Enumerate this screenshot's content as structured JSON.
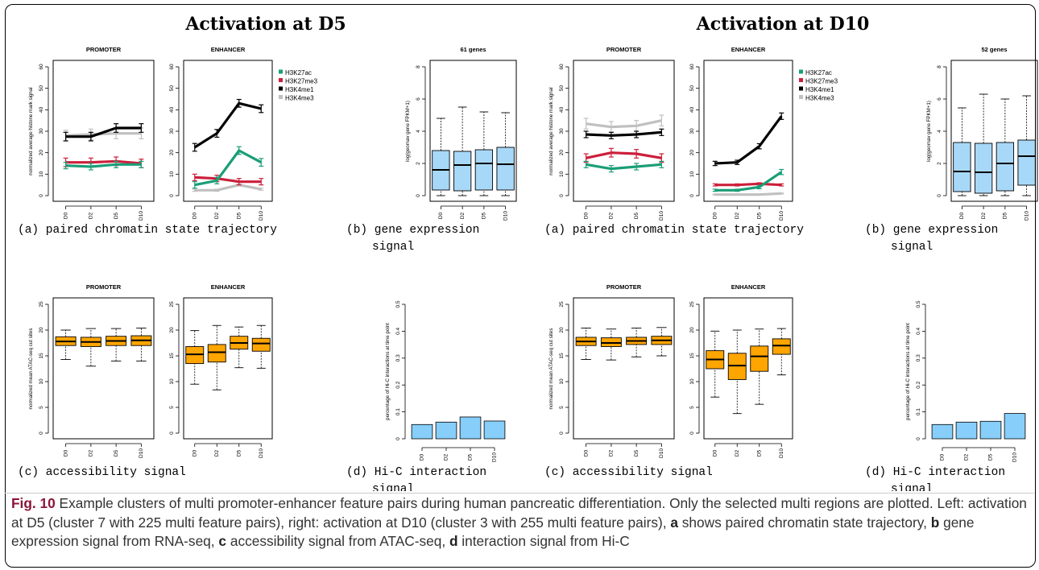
{
  "panels": [
    {
      "heading": "Activation at D5"
    },
    {
      "heading": "Activation at D10"
    }
  ],
  "labels": {
    "a": "(a) paired chromatin state trajectory",
    "b1": "(b) gene expression",
    "b2": "signal",
    "c": "(c) accessibility signal",
    "d1": "(d) Hi-C interaction",
    "d2": "signal"
  },
  "caption": {
    "fig_label": "Fig. 10",
    "sentence1": " Example clusters of multi promoter-enhancer feature pairs during human pancreatic differentiation. Only the selected multi regions are plotted. Left: activation at D5 (cluster 7 with 225 multi feature pairs), right: activation at D10 (cluster 3 with 255 multi feature pairs), ",
    "a_key": "a",
    "a_text": " shows paired chromatin state trajectory, ",
    "b_key": "b",
    "b_text": " gene expression signal from RNA-seq, ",
    "c_key": "c",
    "c_text": " accessibility signal from ATAC-seq, ",
    "d_key": "d",
    "d_text": " interaction signal from Hi-C"
  },
  "colors": {
    "H3K27ac": "#1a9e77",
    "H3K27me3": "#cc1f3b",
    "H3K4me1": "#000000",
    "H3K4me3": "#c0c0c0",
    "box_fill_expression": "#a8d8f8",
    "box_fill_accessibility": "#ffa500",
    "bar_fill": "#87cefa",
    "caption_label": "#8a1538"
  },
  "chart_data": [
    {
      "id": "d5-histone-promoter",
      "type": "line",
      "title": "PROMOTER",
      "ylabel": "normalized average histone mark signal",
      "ylim": [
        0,
        60
      ],
      "yticks": [
        0,
        10,
        20,
        30,
        40,
        50,
        60
      ],
      "categories": [
        "D0",
        "D2",
        "D5",
        "D10"
      ],
      "series": [
        {
          "name": "H3K27ac",
          "values": [
            14,
            13.5,
            14.5,
            14.5
          ],
          "err": [
            1.5,
            1.5,
            1.5,
            1.5
          ]
        },
        {
          "name": "H3K27me3",
          "values": [
            15.5,
            15.5,
            16,
            15
          ],
          "err": [
            2,
            2,
            2,
            2
          ]
        },
        {
          "name": "H3K4me1",
          "values": [
            27.5,
            27.5,
            31.5,
            31.5
          ],
          "err": [
            2,
            2,
            2,
            2
          ]
        },
        {
          "name": "H3K4me3",
          "values": [
            28,
            28.5,
            29,
            29
          ],
          "err": [
            2.5,
            2.5,
            2.5,
            2.5
          ]
        }
      ]
    },
    {
      "id": "d5-histone-enhancer",
      "type": "line",
      "title": "ENHANCER",
      "ylabel": "",
      "ylim": [
        0,
        60
      ],
      "yticks": [
        0,
        10,
        20,
        30,
        40,
        50,
        60
      ],
      "categories": [
        "D0",
        "D2",
        "D5",
        "D10"
      ],
      "legend": "top-right",
      "series": [
        {
          "name": "H3K27ac",
          "values": [
            5,
            7,
            21,
            15.5
          ],
          "err": [
            1.5,
            1.5,
            1.8,
            1.8
          ]
        },
        {
          "name": "H3K27me3",
          "values": [
            8.5,
            8,
            6.5,
            6.5
          ],
          "err": [
            1.5,
            1.5,
            1.5,
            1.5
          ]
        },
        {
          "name": "H3K4me1",
          "values": [
            22.5,
            29,
            43,
            40.5
          ],
          "err": [
            1.8,
            1.8,
            1.8,
            1.8
          ]
        },
        {
          "name": "H3K4me3",
          "values": [
            2.5,
            2.5,
            5,
            3
          ],
          "err": [
            0.5,
            0.5,
            0.5,
            0.5
          ]
        }
      ]
    },
    {
      "id": "d5-expression",
      "type": "box",
      "title": "61 genes",
      "ylabel": "log(geomav gene FPKM+1)",
      "ylim": [
        0,
        8
      ],
      "yticks": [
        0,
        2,
        4,
        6,
        8
      ],
      "categories": [
        "D0",
        "D2",
        "D5",
        "D10"
      ],
      "boxes": [
        {
          "min": 0,
          "q1": 0.35,
          "median": 1.6,
          "q3": 2.8,
          "max": 4.8
        },
        {
          "min": 0,
          "q1": 0.3,
          "median": 1.9,
          "q3": 2.75,
          "max": 5.5
        },
        {
          "min": 0,
          "q1": 0.35,
          "median": 2,
          "q3": 2.85,
          "max": 5.2
        },
        {
          "min": 0,
          "q1": 0.35,
          "median": 1.95,
          "q3": 3,
          "max": 5.15
        }
      ]
    },
    {
      "id": "d10-histone-promoter",
      "type": "line",
      "title": "PROMOTER",
      "ylabel": "normalized average histone mark signal",
      "ylim": [
        0,
        60
      ],
      "yticks": [
        0,
        10,
        20,
        30,
        40,
        50,
        60
      ],
      "categories": [
        "D0",
        "D2",
        "D5",
        "D10"
      ],
      "series": [
        {
          "name": "H3K27ac",
          "values": [
            14.5,
            12.5,
            13.5,
            14.5
          ],
          "err": [
            1.5,
            1.5,
            1.5,
            1.5
          ]
        },
        {
          "name": "H3K27me3",
          "values": [
            17.5,
            20,
            19.5,
            17.5
          ],
          "err": [
            2,
            2,
            2,
            2
          ]
        },
        {
          "name": "H3K4me1",
          "values": [
            28.5,
            28,
            28.5,
            29.5
          ],
          "err": [
            1.5,
            1.5,
            1.5,
            1.5
          ]
        },
        {
          "name": "H3K4me3",
          "values": [
            33.5,
            32,
            32.5,
            35
          ],
          "err": [
            2.5,
            2.5,
            2.5,
            2.5
          ]
        }
      ]
    },
    {
      "id": "d10-histone-enhancer",
      "type": "line",
      "title": "ENHANCER",
      "ylabel": "",
      "ylim": [
        0,
        60
      ],
      "yticks": [
        0,
        10,
        20,
        30,
        40,
        50,
        60
      ],
      "categories": [
        "D0",
        "D2",
        "D5",
        "D10"
      ],
      "legend": "top-right",
      "series": [
        {
          "name": "H3K27ac",
          "values": [
            2.5,
            2.5,
            4,
            11
          ],
          "err": [
            0.5,
            0.5,
            0.8,
            1.2
          ]
        },
        {
          "name": "H3K27me3",
          "values": [
            5,
            5,
            5.5,
            5
          ],
          "err": [
            0.5,
            0.5,
            0.5,
            0.5
          ]
        },
        {
          "name": "H3K4me1",
          "values": [
            15,
            15.5,
            23,
            37
          ],
          "err": [
            1,
            1,
            1.2,
            1.5
          ]
        },
        {
          "name": "H3K4me3",
          "values": [
            0.5,
            0.5,
            0.5,
            1
          ],
          "err": [
            0.2,
            0.2,
            0.2,
            0.2
          ]
        }
      ]
    },
    {
      "id": "d10-expression",
      "type": "box",
      "title": "52 genes",
      "ylabel": "log(geomav gene FPKM+1)",
      "ylim": [
        0,
        8
      ],
      "yticks": [
        0,
        2,
        4,
        6,
        8
      ],
      "categories": [
        "D0",
        "D2",
        "D5",
        "D10"
      ],
      "boxes": [
        {
          "min": 0,
          "q1": 0.25,
          "median": 1.5,
          "q3": 3.3,
          "max": 5.45
        },
        {
          "min": 0,
          "q1": 0.15,
          "median": 1.45,
          "q3": 3.25,
          "max": 6.3
        },
        {
          "min": 0,
          "q1": 0.3,
          "median": 2,
          "q3": 3.3,
          "max": 6
        },
        {
          "min": 0,
          "q1": 0.65,
          "median": 2.45,
          "q3": 3.45,
          "max": 6.2
        }
      ]
    },
    {
      "id": "d5-access-promoter",
      "type": "box",
      "title": "PROMOTER",
      "ylabel": "normalized mean ATAC-seq cut sites",
      "ylim": [
        0,
        25
      ],
      "yticks": [
        0,
        5,
        10,
        15,
        20,
        25
      ],
      "categories": [
        "D0",
        "D2",
        "D5",
        "D10"
      ],
      "boxes": [
        {
          "min": 14.3,
          "q1": 17,
          "median": 17.8,
          "q3": 18.7,
          "max": 20
        },
        {
          "min": 13,
          "q1": 16.8,
          "median": 17.7,
          "q3": 18.6,
          "max": 20.3
        },
        {
          "min": 14,
          "q1": 17,
          "median": 17.9,
          "q3": 18.8,
          "max": 20.3
        },
        {
          "min": 14,
          "q1": 17,
          "median": 18,
          "q3": 18.9,
          "max": 20.4
        }
      ]
    },
    {
      "id": "d5-access-enhancer",
      "type": "box",
      "title": "ENHANCER",
      "ylabel": "",
      "ylim": [
        0,
        25
      ],
      "yticks": [
        0,
        5,
        10,
        15,
        20,
        25
      ],
      "categories": [
        "D0",
        "D2",
        "D5",
        "D10"
      ],
      "boxes": [
        {
          "min": 9.5,
          "q1": 13.5,
          "median": 15.3,
          "q3": 16.8,
          "max": 19.9
        },
        {
          "min": 8.4,
          "q1": 13.8,
          "median": 15.7,
          "q3": 17.2,
          "max": 20.9
        },
        {
          "min": 12.7,
          "q1": 16.3,
          "median": 17.5,
          "q3": 18.8,
          "max": 20.6
        },
        {
          "min": 12.6,
          "q1": 15.9,
          "median": 17.4,
          "q3": 18.4,
          "max": 20.9
        }
      ]
    },
    {
      "id": "d5-hic",
      "type": "bar",
      "title": "",
      "ylabel": "percentage of Hi-C interactions at time point",
      "ylim": [
        0,
        0.5
      ],
      "yticks": [
        0,
        0.1,
        0.2,
        0.3,
        0.4,
        0.5
      ],
      "categories": [
        "D0",
        "D2",
        "D5",
        "D10"
      ],
      "values": [
        0.053,
        0.062,
        0.081,
        0.066
      ]
    },
    {
      "id": "d10-access-promoter",
      "type": "box",
      "title": "PROMOTER",
      "ylabel": "normalized mean ATAC-seq cut sites",
      "ylim": [
        0,
        25
      ],
      "yticks": [
        0,
        5,
        10,
        15,
        20,
        25
      ],
      "categories": [
        "D0",
        "D2",
        "D5",
        "D10"
      ],
      "boxes": [
        {
          "min": 14.3,
          "q1": 17,
          "median": 17.8,
          "q3": 18.6,
          "max": 20.4
        },
        {
          "min": 14.2,
          "q1": 16.8,
          "median": 17.5,
          "q3": 18.5,
          "max": 20.2
        },
        {
          "min": 14.8,
          "q1": 17.2,
          "median": 17.9,
          "q3": 18.6,
          "max": 20.4
        },
        {
          "min": 15,
          "q1": 17.2,
          "median": 18,
          "q3": 18.8,
          "max": 20.5
        }
      ]
    },
    {
      "id": "d10-access-enhancer",
      "type": "box",
      "title": "ENHANCER",
      "ylabel": "",
      "ylim": [
        0,
        25
      ],
      "yticks": [
        0,
        5,
        10,
        15,
        20,
        25
      ],
      "categories": [
        "D0",
        "D2",
        "D5",
        "D10"
      ],
      "boxes": [
        {
          "min": 7,
          "q1": 12.5,
          "median": 14.3,
          "q3": 16,
          "max": 19.8
        },
        {
          "min": 3.8,
          "q1": 10.4,
          "median": 13.1,
          "q3": 15.5,
          "max": 20
        },
        {
          "min": 5.6,
          "q1": 12,
          "median": 14.9,
          "q3": 16.9,
          "max": 20.2
        },
        {
          "min": 11.3,
          "q1": 15.3,
          "median": 17,
          "q3": 18.3,
          "max": 20.3
        }
      ]
    },
    {
      "id": "d10-hic",
      "type": "bar",
      "title": "",
      "ylabel": "percentage of Hi-C interactions at time point",
      "ylim": [
        0,
        0.5
      ],
      "yticks": [
        0,
        0.1,
        0.2,
        0.3,
        0.4,
        0.5
      ],
      "categories": [
        "D0",
        "D2",
        "D5",
        "D10"
      ],
      "values": [
        0.053,
        0.062,
        0.065,
        0.094
      ]
    }
  ]
}
